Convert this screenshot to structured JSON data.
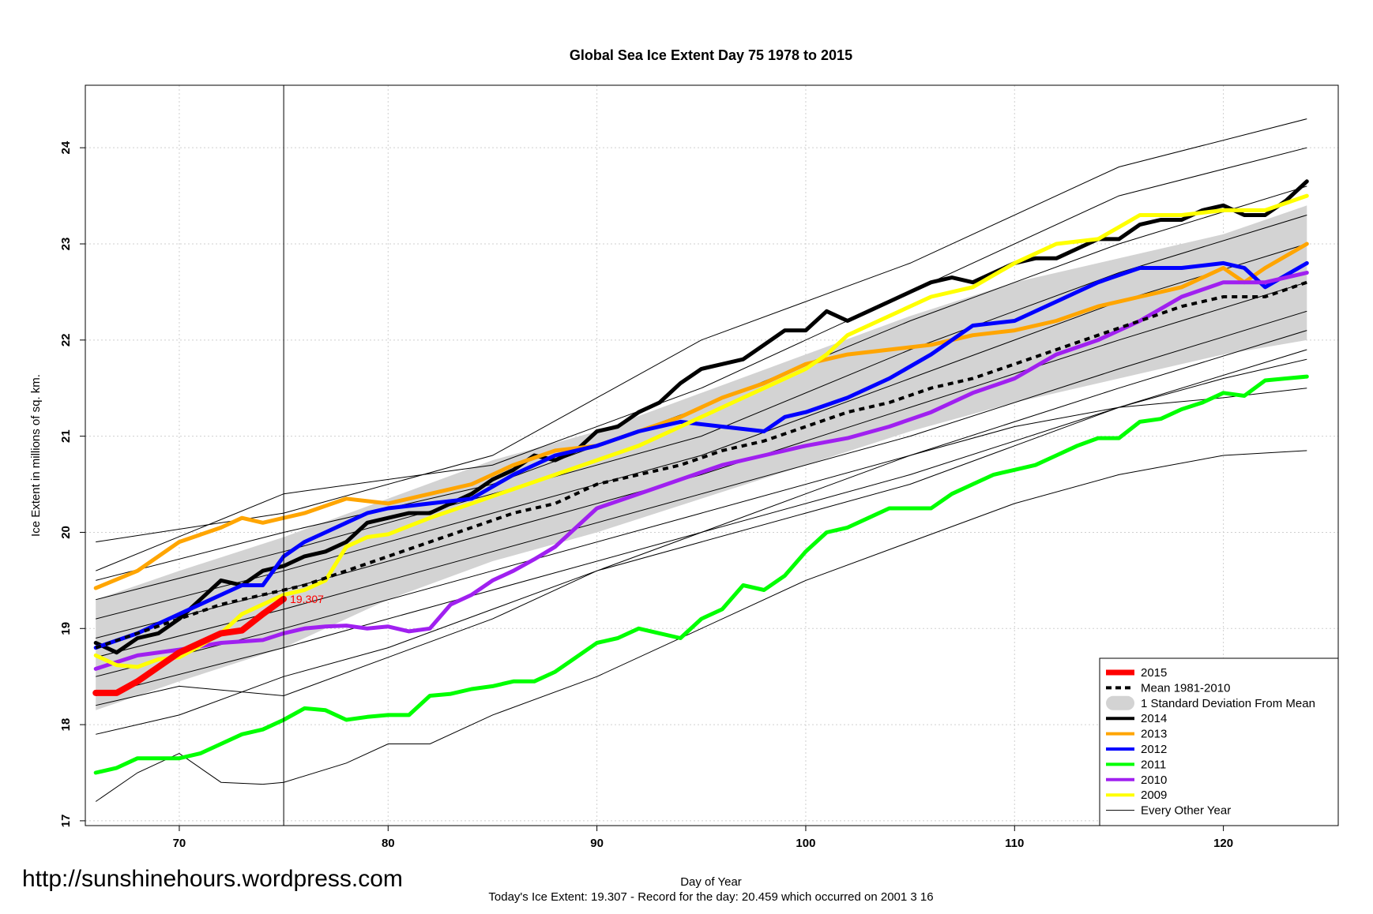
{
  "title": "Global Sea Ice Extent Day 75 1978 to 2015",
  "watermark": "http://sunshinehours.wordpress.com",
  "footer": "Today's Ice Extent: 19.307  - Record for the day: 20.459 which occurred on 2001 3 16",
  "chart_data": {
    "type": "line",
    "title": "Global Sea Ice Extent Day 75 1978 to 2015",
    "xlabel": "Day of Year",
    "ylabel": "Ice Extent in millions of sq. km.",
    "xlim": [
      65.5,
      125.5
    ],
    "ylim": [
      16.95,
      24.65
    ],
    "xticks": [
      70,
      80,
      90,
      100,
      110,
      120
    ],
    "yticks": [
      17,
      18,
      19,
      20,
      21,
      22,
      23,
      24
    ],
    "grid": true,
    "legend_position": "bottom-right",
    "current_day": 75,
    "current_value_label": "19.307",
    "legend": [
      {
        "label": "2015",
        "color": "#ff0000",
        "style": "thick"
      },
      {
        "label": "Mean 1981-2010",
        "color": "#000000",
        "style": "dashed"
      },
      {
        "label": "1 Standard Deviation From Mean",
        "color": "#d3d3d3",
        "style": "band"
      },
      {
        "label": "2014",
        "color": "#000000",
        "style": "line"
      },
      {
        "label": "2013",
        "color": "#ffa500",
        "style": "line"
      },
      {
        "label": "2012",
        "color": "#0000ff",
        "style": "line"
      },
      {
        "label": "2011",
        "color": "#00ff00",
        "style": "line"
      },
      {
        "label": "2010",
        "color": "#a020f0",
        "style": "line"
      },
      {
        "label": "2009",
        "color": "#ffff00",
        "style": "line"
      },
      {
        "label": "Every Other Year",
        "color": "#000000",
        "style": "thin"
      }
    ],
    "sd_band": {
      "x": [
        66,
        70,
        75,
        80,
        85,
        90,
        95,
        100,
        105,
        110,
        115,
        120,
        124
      ],
      "lower": [
        18.15,
        18.45,
        18.8,
        19.3,
        19.7,
        20.0,
        20.35,
        20.7,
        21.05,
        21.35,
        21.6,
        21.85,
        22.0
      ],
      "upper": [
        19.3,
        19.6,
        19.95,
        20.35,
        20.75,
        21.05,
        21.45,
        21.85,
        22.25,
        22.6,
        22.85,
        23.1,
        23.4
      ]
    },
    "mean": {
      "x": [
        66,
        68,
        70,
        72,
        74,
        76,
        78,
        80,
        82,
        84,
        86,
        88,
        90,
        92,
        94,
        96,
        98,
        100,
        102,
        104,
        106,
        108,
        110,
        112,
        114,
        116,
        118,
        120,
        122,
        124
      ],
      "y": [
        18.8,
        18.95,
        19.1,
        19.25,
        19.35,
        19.45,
        19.6,
        19.75,
        19.9,
        20.05,
        20.2,
        20.3,
        20.5,
        20.6,
        20.7,
        20.85,
        20.95,
        21.1,
        21.25,
        21.35,
        21.5,
        21.6,
        21.75,
        21.9,
        22.05,
        22.2,
        22.35,
        22.45,
        22.45,
        22.6
      ]
    },
    "series": [
      {
        "name": "2015",
        "color": "#ff0000",
        "width": 8,
        "x": [
          66,
          67,
          68,
          69,
          70,
          71,
          72,
          73,
          74,
          75
        ],
        "y": [
          18.33,
          18.33,
          18.45,
          18.6,
          18.75,
          18.85,
          18.95,
          18.98,
          19.15,
          19.307
        ]
      },
      {
        "name": "2014",
        "color": "#000000",
        "width": 5,
        "x": [
          66,
          67,
          68,
          69,
          70,
          71,
          72,
          73,
          74,
          75,
          76,
          77,
          78,
          79,
          80,
          81,
          82,
          83,
          84,
          85,
          86,
          87,
          88,
          89,
          90,
          91,
          92,
          93,
          94,
          95,
          96,
          97,
          98,
          99,
          100,
          101,
          102,
          103,
          104,
          105,
          106,
          107,
          108,
          109,
          110,
          111,
          112,
          113,
          114,
          115,
          116,
          117,
          118,
          119,
          120,
          121,
          122,
          123,
          124
        ],
        "y": [
          18.85,
          18.75,
          18.9,
          18.95,
          19.1,
          19.3,
          19.5,
          19.45,
          19.6,
          19.65,
          19.75,
          19.8,
          19.9,
          20.1,
          20.15,
          20.2,
          20.2,
          20.3,
          20.4,
          20.55,
          20.65,
          20.8,
          20.75,
          20.85,
          21.05,
          21.1,
          21.25,
          21.35,
          21.55,
          21.7,
          21.75,
          21.8,
          21.95,
          22.1,
          22.1,
          22.3,
          22.2,
          22.3,
          22.4,
          22.5,
          22.6,
          22.65,
          22.6,
          22.7,
          22.8,
          22.85,
          22.85,
          22.95,
          23.05,
          23.05,
          23.2,
          23.25,
          23.25,
          23.35,
          23.4,
          23.3,
          23.3,
          23.45,
          23.65
        ]
      },
      {
        "name": "2013",
        "color": "#ffa500",
        "width": 5,
        "x": [
          66,
          68,
          70,
          72,
          73,
          74,
          75,
          76,
          78,
          80,
          82,
          84,
          86,
          88,
          90,
          92,
          94,
          96,
          98,
          100,
          102,
          104,
          106,
          108,
          110,
          112,
          114,
          116,
          118,
          120,
          121,
          122,
          124
        ],
        "y": [
          19.42,
          19.6,
          19.9,
          20.05,
          20.15,
          20.1,
          20.15,
          20.2,
          20.35,
          20.3,
          20.4,
          20.5,
          20.7,
          20.85,
          20.9,
          21.05,
          21.2,
          21.4,
          21.55,
          21.75,
          21.85,
          21.9,
          21.95,
          22.05,
          22.1,
          22.2,
          22.35,
          22.45,
          22.55,
          22.75,
          22.6,
          22.75,
          23.0
        ]
      },
      {
        "name": "2012",
        "color": "#0000ff",
        "width": 5,
        "x": [
          66,
          68,
          70,
          72,
          73,
          74,
          75,
          76,
          77,
          78,
          79,
          80,
          82,
          84,
          86,
          88,
          90,
          92,
          94,
          96,
          98,
          99,
          100,
          102,
          104,
          106,
          108,
          110,
          112,
          113,
          114,
          116,
          118,
          120,
          121,
          122,
          124
        ],
        "y": [
          18.8,
          18.95,
          19.15,
          19.35,
          19.45,
          19.45,
          19.75,
          19.9,
          20.0,
          20.1,
          20.2,
          20.25,
          20.3,
          20.35,
          20.6,
          20.8,
          20.9,
          21.05,
          21.15,
          21.1,
          21.05,
          21.2,
          21.25,
          21.4,
          21.6,
          21.85,
          22.15,
          22.2,
          22.4,
          22.5,
          22.6,
          22.75,
          22.75,
          22.8,
          22.75,
          22.55,
          22.8
        ]
      },
      {
        "name": "2011",
        "color": "#00ff00",
        "width": 5,
        "x": [
          66,
          67,
          68,
          69,
          70,
          71,
          72,
          73,
          74,
          75,
          76,
          77,
          78,
          79,
          80,
          81,
          82,
          83,
          84,
          85,
          86,
          87,
          88,
          89,
          90,
          91,
          92,
          93,
          94,
          95,
          96,
          97,
          98,
          99,
          100,
          101,
          102,
          103,
          104,
          105,
          106,
          107,
          108,
          109,
          110,
          111,
          112,
          113,
          114,
          115,
          116,
          117,
          118,
          119,
          120,
          121,
          122,
          123,
          124
        ],
        "y": [
          17.5,
          17.55,
          17.65,
          17.65,
          17.65,
          17.7,
          17.8,
          17.9,
          17.95,
          18.05,
          18.17,
          18.15,
          18.05,
          18.08,
          18.1,
          18.1,
          18.3,
          18.32,
          18.37,
          18.4,
          18.45,
          18.45,
          18.55,
          18.7,
          18.85,
          18.9,
          19.0,
          18.95,
          18.9,
          19.1,
          19.2,
          19.45,
          19.4,
          19.55,
          19.8,
          20.0,
          20.05,
          20.15,
          20.25,
          20.25,
          20.25,
          20.4,
          20.5,
          20.6,
          20.65,
          20.7,
          20.8,
          20.9,
          20.98,
          20.98,
          21.15,
          21.18,
          21.28,
          21.35,
          21.45,
          21.42,
          21.58,
          21.6,
          21.62
        ]
      },
      {
        "name": "2010",
        "color": "#a020f0",
        "width": 5,
        "x": [
          66,
          68,
          70,
          72,
          74,
          75,
          76,
          77,
          78,
          79,
          80,
          81,
          82,
          83,
          84,
          85,
          86,
          87,
          88,
          89,
          90,
          92,
          94,
          96,
          98,
          100,
          102,
          104,
          106,
          108,
          110,
          112,
          114,
          116,
          118,
          120,
          122,
          124
        ],
        "y": [
          18.58,
          18.72,
          18.78,
          18.85,
          18.88,
          18.95,
          19.0,
          19.02,
          19.03,
          19.0,
          19.02,
          18.97,
          19.0,
          19.25,
          19.35,
          19.5,
          19.6,
          19.72,
          19.85,
          20.05,
          20.25,
          20.4,
          20.55,
          20.7,
          20.8,
          20.9,
          20.98,
          21.1,
          21.25,
          21.45,
          21.6,
          21.85,
          22.0,
          22.2,
          22.45,
          22.6,
          22.6,
          22.7
        ]
      },
      {
        "name": "2009",
        "color": "#ffff00",
        "width": 5,
        "x": [
          66,
          67,
          68,
          69,
          70,
          71,
          72,
          73,
          74,
          75,
          76,
          77,
          78,
          79,
          80,
          82,
          84,
          86,
          88,
          90,
          92,
          94,
          96,
          98,
          100,
          101,
          102,
          104,
          106,
          108,
          110,
          112,
          114,
          116,
          118,
          120,
          122,
          124
        ],
        "y": [
          18.72,
          18.62,
          18.6,
          18.68,
          18.7,
          18.82,
          18.95,
          19.15,
          19.25,
          19.35,
          19.4,
          19.5,
          19.85,
          19.95,
          19.98,
          20.15,
          20.3,
          20.45,
          20.6,
          20.75,
          20.9,
          21.1,
          21.3,
          21.5,
          21.7,
          21.85,
          22.05,
          22.25,
          22.45,
          22.55,
          22.8,
          23.0,
          23.05,
          23.3,
          23.3,
          23.35,
          23.35,
          23.5
        ]
      }
    ],
    "other_years": [
      {
        "x": [
          66,
          75,
          85,
          95,
          105,
          115,
          124
        ],
        "y": [
          19.9,
          20.2,
          20.8,
          22.0,
          22.8,
          23.8,
          24.3
        ]
      },
      {
        "x": [
          66,
          75,
          85,
          95,
          105,
          115,
          124
        ],
        "y": [
          19.6,
          20.4,
          20.7,
          21.5,
          22.5,
          23.5,
          24.0
        ]
      },
      {
        "x": [
          66,
          75,
          85,
          95,
          105,
          115,
          124
        ],
        "y": [
          19.5,
          20.0,
          20.5,
          21.3,
          22.2,
          23.0,
          23.6
        ]
      },
      {
        "x": [
          66,
          75,
          85,
          95,
          105,
          115,
          124
        ],
        "y": [
          19.3,
          19.8,
          20.4,
          21.0,
          21.9,
          22.7,
          23.3
        ]
      },
      {
        "x": [
          66,
          75,
          85,
          95,
          105,
          115,
          124
        ],
        "y": [
          19.1,
          19.6,
          20.2,
          20.8,
          21.6,
          22.4,
          23.0
        ]
      },
      {
        "x": [
          66,
          75,
          85,
          95,
          105,
          115,
          124
        ],
        "y": [
          18.9,
          19.4,
          20.0,
          20.6,
          21.3,
          22.0,
          22.6
        ]
      },
      {
        "x": [
          66,
          75,
          85,
          95,
          105,
          115,
          124
        ],
        "y": [
          18.7,
          19.2,
          19.8,
          20.4,
          21.0,
          21.7,
          22.3
        ]
      },
      {
        "x": [
          66,
          75,
          85,
          95,
          105,
          115,
          124
        ],
        "y": [
          18.5,
          19.0,
          19.6,
          20.2,
          20.8,
          21.5,
          22.1
        ]
      },
      {
        "x": [
          66,
          75,
          85,
          95,
          105,
          115,
          124
        ],
        "y": [
          18.3,
          18.8,
          19.4,
          20.0,
          20.6,
          21.3,
          21.9
        ]
      },
      {
        "x": [
          66,
          70,
          75,
          80,
          85,
          90,
          95,
          100,
          105,
          110,
          115,
          120,
          124
        ],
        "y": [
          18.2,
          18.4,
          18.3,
          18.7,
          19.1,
          19.6,
          20.0,
          20.4,
          20.8,
          21.1,
          21.3,
          21.4,
          21.5
        ]
      },
      {
        "x": [
          66,
          70,
          75,
          80,
          85,
          90,
          95,
          100,
          105,
          110,
          115,
          120,
          124
        ],
        "y": [
          17.9,
          18.1,
          18.5,
          18.8,
          19.2,
          19.6,
          19.9,
          20.2,
          20.5,
          20.9,
          21.3,
          21.6,
          21.8
        ]
      },
      {
        "x": [
          66,
          68,
          70,
          72,
          74,
          75,
          78,
          80,
          82,
          85,
          90,
          95,
          100,
          105,
          110,
          115,
          120,
          124
        ],
        "y": [
          17.2,
          17.5,
          17.7,
          17.4,
          17.38,
          17.4,
          17.6,
          17.8,
          17.8,
          18.1,
          18.5,
          19.0,
          19.5,
          19.9,
          20.3,
          20.6,
          20.8,
          20.85
        ]
      }
    ]
  }
}
